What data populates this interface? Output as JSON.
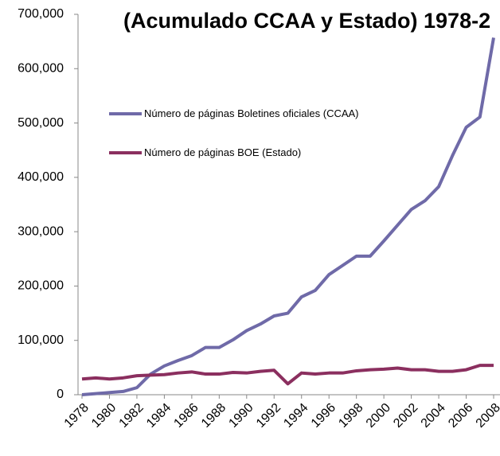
{
  "chart_data": {
    "type": "line",
    "title": "(Acumulado CCAA y Estado) 1978-2",
    "x": [
      1978,
      1979,
      1980,
      1981,
      1982,
      1983,
      1984,
      1985,
      1986,
      1987,
      1988,
      1989,
      1990,
      1991,
      1992,
      1993,
      1994,
      1995,
      1996,
      1997,
      1998,
      1999,
      2000,
      2001,
      2002,
      2003,
      2004,
      2005,
      2006,
      2007,
      2008
    ],
    "series": [
      {
        "name": "Número de páginas Boletines oficiales (CCAA)",
        "color": "#6f6aa8",
        "values": [
          0,
          2000,
          4000,
          6000,
          13000,
          38000,
          53000,
          63000,
          72000,
          87000,
          87000,
          101000,
          118000,
          130000,
          145000,
          150000,
          180000,
          192000,
          221000,
          238000,
          255000,
          255000,
          283000,
          312000,
          341000,
          357000,
          383000,
          440000,
          492000,
          511000,
          657000
        ]
      },
      {
        "name": "Número de páginas BOE (Estado)",
        "color": "#8b2f5f",
        "values": [
          29000,
          31000,
          29000,
          31000,
          35000,
          36000,
          37000,
          40000,
          42000,
          38000,
          38000,
          41000,
          40000,
          43000,
          45000,
          20000,
          40000,
          38000,
          40000,
          40000,
          44000,
          46000,
          47000,
          49000,
          46000,
          46000,
          43000,
          43000,
          46000,
          54000,
          54000
        ]
      }
    ],
    "xlim": [
      1978,
      2008
    ],
    "xticks": [
      1978,
      1980,
      1982,
      1984,
      1986,
      1988,
      1990,
      1992,
      1994,
      1996,
      1998,
      2000,
      2002,
      2004,
      2006,
      2008
    ],
    "ylim": [
      0,
      700000
    ],
    "yticks": [
      0,
      {
        "value": 100000,
        "label": "100,000"
      },
      {
        "value": 200000,
        "label": "200,000"
      },
      {
        "value": 300000,
        "label": "300,000"
      },
      {
        "value": 400000,
        "label": "400,000"
      },
      {
        "value": 500000,
        "label": "500,000"
      },
      {
        "value": 600000,
        "label": "600,000"
      },
      {
        "value": 700000,
        "label": "700,000"
      }
    ],
    "grid": false
  }
}
